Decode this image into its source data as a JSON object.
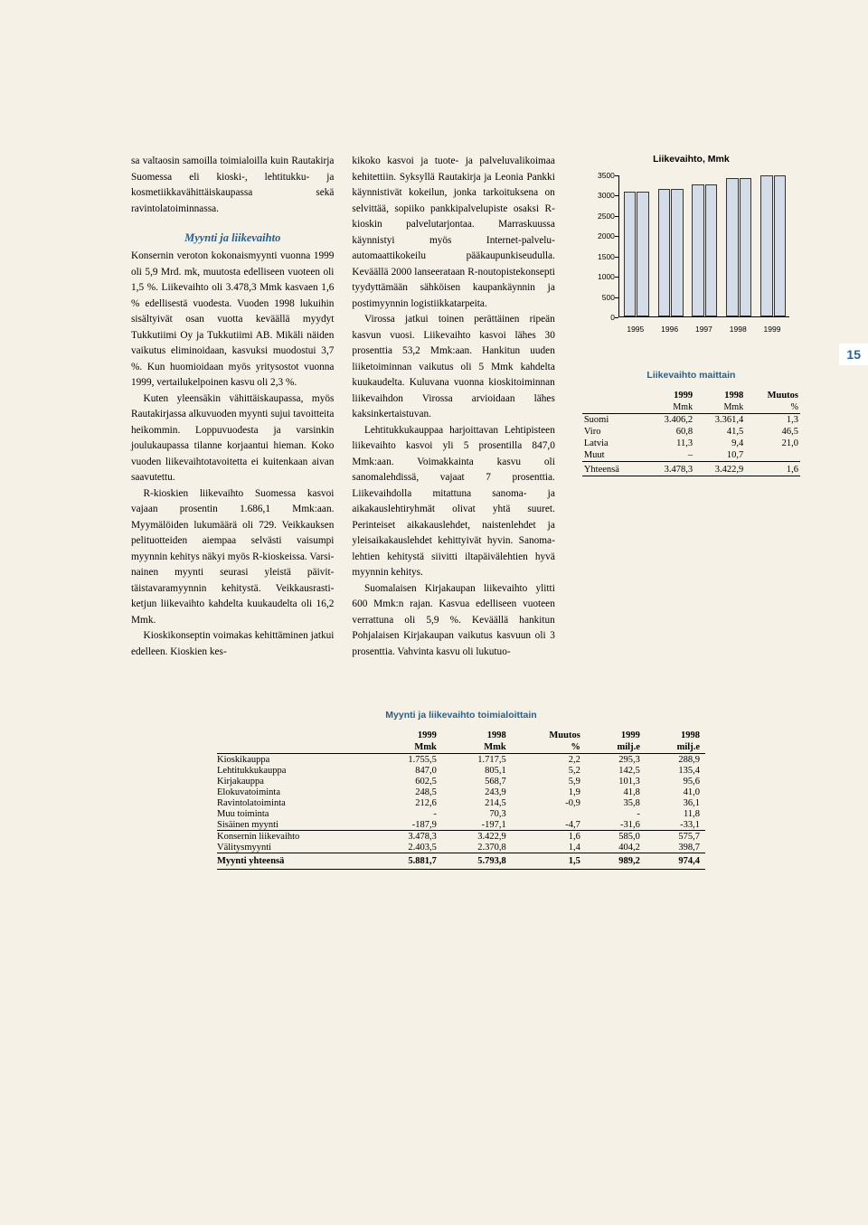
{
  "page_number": "15",
  "col1": {
    "p1": "sa valtaosin samoilla toimialoilla kuin Rautakirja Suomessa eli kioski-, lehti­tukku- ja kosmetiikkavähittäiskaupas­sa sekä ravintolatoiminnassa.",
    "section": "Myynti ja liikevaihto",
    "p2": "Konsernin veroton kokonaismyynti vuonna 1999 oli 5,9 Mrd. mk, muu­tosta edelliseen vuoteen oli 1,5 %. Lii­kevaihto oli 3.478,3 Mmk kasvaen 1,6 % edellisestä vuodesta. Vuoden 1998 lukuihin sisältyivät osan vuotta keväällä myydyt Tukkutiimi Oy ja Tukkutiimi AB. Mikäli näiden vaiku­tus eliminoidaan, kasvuksi muodostui 3,7 %. Kun huomioidaan myös yritys­ostot vuonna 1999, vertailukelpoinen kasvu oli  2,3 %.",
    "p3": "Kuten yleensäkin vähittäiskau­passa, myös Rautakirjassa alkuvuoden myynti sujui tavoitteita heikommin. Loppuvuodesta ja varsinkin joulukau­passa tilanne korjaantui hieman. Koko vuoden liikevaihtotavoitetta ei kuiten­kaan aivan saavutettu.",
    "p4": "R-kioskien liikevaihto Suomessa kasvoi vajaan prosentin 1.686,1 Mmk:aan. Myymälöiden lukumäärä oli 729. Veikkauksen pelituotteiden ai­empaa selvästi vaisumpi myynnin ke­hitys näkyi myös R-kioskeissa. Varsi­nainen myynti seurasi yleistä päivit­täistavaramyynnin kehitystä. Veikkaus­rasti-ketjun liikevaihto kahdelta kuu­kaudelta oli 16,2 Mmk.",
    "p5": "Kioskikonseptin voimakas kehit­täminen jatkui edelleen. Kioskien kes-"
  },
  "col2": {
    "p1": "kikoko kasvoi ja tuote- ja palveluvali­koimaa kehitettiin. Syksyllä Rautakir­ja ja Leonia Pankki käynnistivät kokei­lun, jonka tarkoituksena on selvittää, sopiiko pankkipalvelupiste osaksi R-kioskin palvelutarjontaa. Marraskuus­sa käynnistyi myös Internet-palvelu­automaattikokeilu pääkaupunkiseu­dulla. Keväällä 2000 lanseerataan R-noutopistekonsepti tyydyttämään säh­köisen kaupankäynnin ja postimyyn­nin logistiikkatarpeita.",
    "p2": "Virossa jatkui toinen perättäinen ripeän kasvun vuosi. Liikevaihto kas­voi lähes 30 prosenttia 53,2 Mmk:aan. Hankitun uuden liiketoiminnan vai­kutus oli 5 Mmk kahdelta kuukaudel­ta. Kuluvana vuonna kioskitoiminnan liikevaihdon Virossa arvioidaan lähes kaksinkertaistuvan.",
    "p3": "Lehtitukkukauppaa harjoittavan Lehtipisteen liikevaihto kasvoi yli 5 prosentilla 847,0 Mmk:aan. Voimak­kainta kasvu oli sanomalehdissä, va­jaat 7 prosenttia. Liikevaihdolla mitat­tuna sanoma- ja aikakauslehtiryhmät olivat yhtä suuret. Perinteiset aika­kauslehdet, naistenlehdet ja yleisaika­kauslehdet kehittyivät hyvin. Sanoma­lehtien kehitystä siivitti iltapäivälehti­en hyvä myynnin kehitys.",
    "p4": "Suomalaisen Kirjakaupan liike­vaihto ylitti 600 Mmk:n rajan. Kasvua edelliseen vuoteen verrattuna oli 5,9 %. Keväällä hankitun Pohjalaisen Kirjakaupan vaikutus kasvuun oli 3 prosenttia. Vahvinta kasvu oli lukutuo-"
  },
  "chart": {
    "title": "Liikevaihto, Mmk",
    "ylim": [
      0,
      3500
    ],
    "ytick_step": 500,
    "categories": [
      "1995",
      "1996",
      "1997",
      "1998",
      "1999"
    ],
    "bars_per_group": 2,
    "bar_color": "#d4dce8",
    "bar_border": "#333333",
    "background": "#f5f1e6",
    "values": [
      [
        3080,
        3080
      ],
      [
        3150,
        3150
      ],
      [
        3250,
        3250
      ],
      [
        3420,
        3420
      ],
      [
        3480,
        3480
      ]
    ]
  },
  "table1": {
    "title": "Liikevaihto maittain",
    "headers": [
      "",
      "1999",
      "1998",
      "Muutos"
    ],
    "subheaders": [
      "",
      "Mmk",
      "Mmk",
      "%"
    ],
    "rows": [
      [
        "Suomi",
        "3.406,2",
        "3.361,4",
        "1,3"
      ],
      [
        "Viro",
        "60,8",
        "41,5",
        "46,5"
      ],
      [
        "Latvia",
        "11,3",
        "9,4",
        "21,0"
      ],
      [
        "Muut",
        "–",
        "10,7",
        ""
      ]
    ],
    "total": [
      "Yhteensä",
      "3.478,3",
      "3.422,9",
      "1,6"
    ]
  },
  "table2": {
    "title": "Myynti ja liikevaihto toimialoittain",
    "headers": [
      "",
      "1999",
      "1998",
      "Muutos",
      "1999",
      "1998"
    ],
    "subheaders": [
      "",
      "Mmk",
      "Mmk",
      "%",
      "milj.e",
      "milj.e"
    ],
    "rows": [
      [
        "Kioskikauppa",
        "1.755,5",
        "1.717,5",
        "2,2",
        "295,3",
        "288,9"
      ],
      [
        "Lehtitukkukauppa",
        "847,0",
        "805,1",
        "5,2",
        "142,5",
        "135,4"
      ],
      [
        "Kirjakauppa",
        "602,5",
        "568,7",
        "5,9",
        "101,3",
        "95,6"
      ],
      [
        "Elokuvatoiminta",
        "248,5",
        "243,9",
        "1,9",
        "41,8",
        "41,0"
      ],
      [
        "Ravintolatoiminta",
        "212,6",
        "214,5",
        "-0,9",
        "35,8",
        "36,1"
      ],
      [
        "Muu toiminta",
        "-",
        "70,3",
        "",
        "-",
        "11,8"
      ],
      [
        "Sisäinen myynti",
        "-187,9",
        "-197,1",
        "-4,7",
        "-31,6",
        "-33,1"
      ]
    ],
    "sub1": [
      "Konsernin liikevaihto",
      "3.478,3",
      "3.422,9",
      "1,6",
      "585,0",
      "575,7"
    ],
    "sub2": [
      "Välitysmyynti",
      "2.403,5",
      "2.370,8",
      "1,4",
      "404,2",
      "398,7"
    ],
    "grand": [
      "Myynti yhteensä",
      "5.881,7",
      "5.793,8",
      "1,5",
      "989,2",
      "974,4"
    ]
  }
}
